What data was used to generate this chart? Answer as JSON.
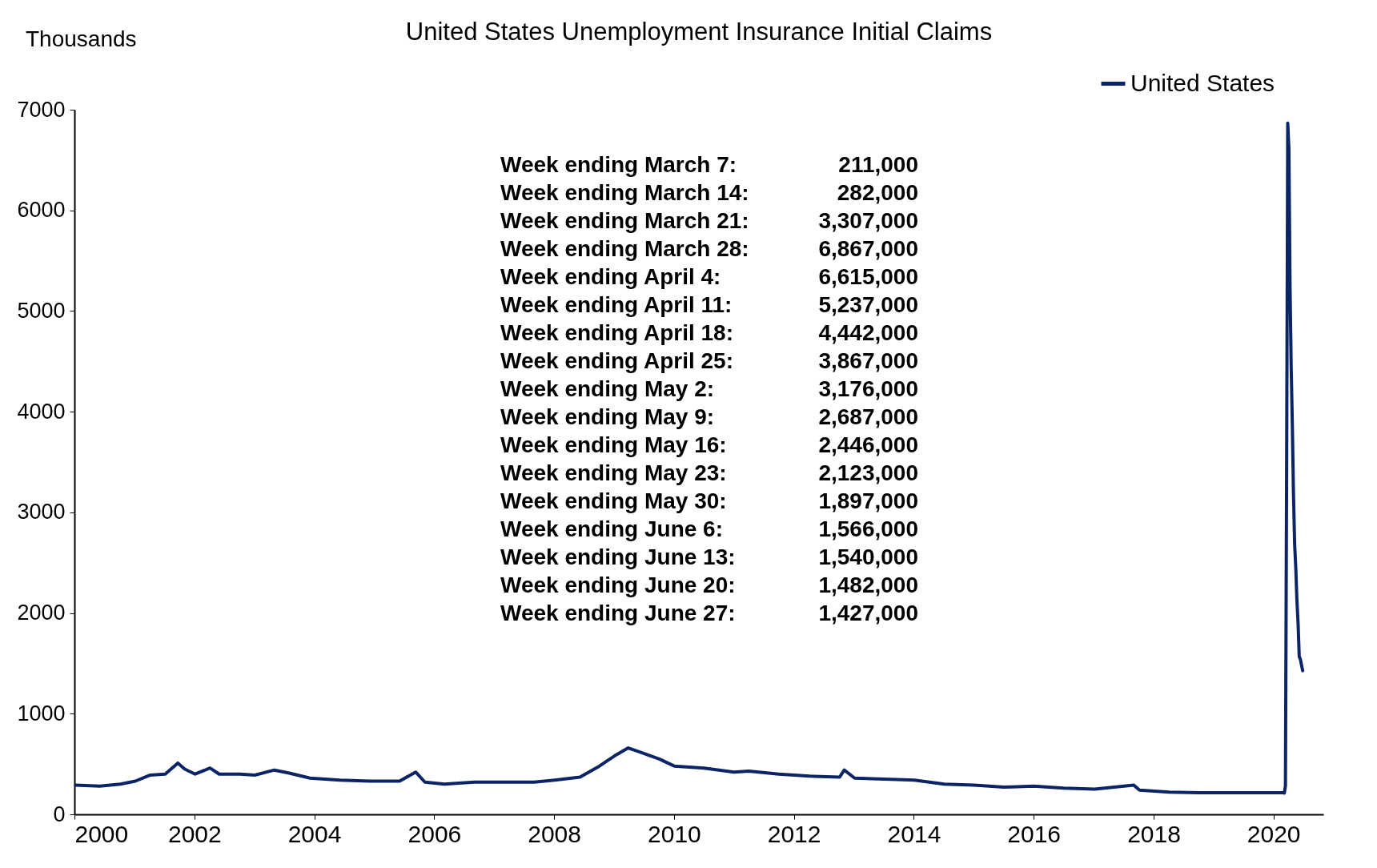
{
  "chart_data": {
    "type": "line",
    "title": "United States Unemployment Insurance Initial Claims",
    "ylabel": "Thousands",
    "x": [
      "2000-01-08",
      "2000-06-03",
      "2000-10-07",
      "2001-01-06",
      "2001-04-07",
      "2001-07-07",
      "2001-09-22",
      "2001-11-03",
      "2002-01-05",
      "2002-04-06",
      "2002-06-01",
      "2002-10-05",
      "2003-01-04",
      "2003-05-03",
      "2003-08-02",
      "2003-12-06",
      "2004-06-05",
      "2004-12-04",
      "2005-06-04",
      "2005-09-10",
      "2005-11-05",
      "2006-03-04",
      "2006-09-02",
      "2007-03-03",
      "2007-09-01",
      "2008-01-05",
      "2008-06-07",
      "2008-10-04",
      "2009-01-03",
      "2009-03-28",
      "2009-06-06",
      "2009-10-03",
      "2010-01-02",
      "2010-07-03",
      "2011-01-01",
      "2011-04-02",
      "2011-10-01",
      "2012-04-07",
      "2012-10-06",
      "2012-11-03",
      "2013-01-05",
      "2013-07-06",
      "2014-01-04",
      "2014-07-05",
      "2015-01-03",
      "2015-07-04",
      "2016-01-02",
      "2016-07-02",
      "2017-01-07",
      "2017-09-02",
      "2017-10-07",
      "2018-04-07",
      "2018-10-06",
      "2019-04-06",
      "2019-10-05",
      "2020-02-29",
      "2020-03-07",
      "2020-03-14",
      "2020-03-21",
      "2020-03-28",
      "2020-04-04",
      "2020-04-11",
      "2020-04-18",
      "2020-04-25",
      "2020-05-02",
      "2020-05-09",
      "2020-05-16",
      "2020-05-23",
      "2020-05-30",
      "2020-06-06",
      "2020-06-13",
      "2020-06-20",
      "2020-06-27"
    ],
    "series": [
      {
        "name": "United States",
        "color": "#0b2466",
        "values": [
          290,
          280,
          300,
          330,
          390,
          400,
          510,
          450,
          400,
          460,
          400,
          400,
          390,
          440,
          410,
          360,
          340,
          330,
          330,
          420,
          320,
          300,
          320,
          320,
          320,
          340,
          370,
          480,
          580,
          660,
          620,
          550,
          480,
          460,
          420,
          430,
          400,
          380,
          370,
          440,
          360,
          350,
          340,
          300,
          290,
          270,
          280,
          260,
          250,
          290,
          240,
          220,
          215,
          215,
          215,
          217,
          211,
          282,
          3307,
          6867,
          6615,
          5237,
          4442,
          3867,
          3176,
          2687,
          2446,
          2123,
          1897,
          1566,
          1540,
          1482,
          1427
        ]
      }
    ],
    "xlim": [
      "2000-01-01",
      "2020-10-31"
    ],
    "xticks": [
      "2000",
      "2002",
      "2004",
      "2006",
      "2008",
      "2010",
      "2012",
      "2014",
      "2016",
      "2018",
      "2020"
    ],
    "ylim": [
      0,
      7000
    ],
    "yticks": [
      0,
      1000,
      2000,
      3000,
      4000,
      5000,
      6000,
      7000
    ],
    "legend": "top right",
    "grid": false,
    "marker": "none",
    "line_style": "solid",
    "annotations": [
      "Week ending March 7: 211,000",
      "Week ending March 14: 282,000",
      "Week ending March 21: 3,307,000",
      "Week ending March 28: 6,867,000",
      "Week ending April 4: 6,615,000",
      "Week ending April 11: 5,237,000",
      "Week ending April 18: 4,442,000",
      "Week ending April 25: 3,867,000",
      "Week ending May 2: 3,176,000",
      "Week ending May 9: 2,687,000",
      "Week ending May 16: 2,446,000",
      "Week ending May 23: 2,123,000",
      "Week ending May 30: 1,897,000",
      "Week ending June 6: 1,566,000",
      "Week ending June 13: 1,540,000",
      "Week ending June 20: 1,482,000",
      "Week ending June 27: 1,427,000"
    ]
  }
}
